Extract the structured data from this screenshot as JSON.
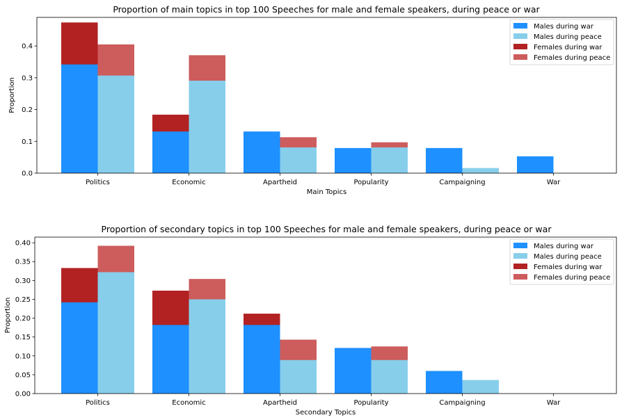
{
  "colors": {
    "males_war": "#1e90ff",
    "males_peace": "#87ceeb",
    "females_war": "#b22222",
    "females_peace": "#cd5c5c"
  },
  "chart_data": [
    {
      "type": "bar",
      "title": "Proportion of main topics in top 100 Speeches for male and female speakers, during peace or war",
      "xlabel": "Main Topics",
      "ylabel": "Proportion",
      "ylim": [
        0,
        0.49
      ],
      "yticks": [
        0.0,
        0.1,
        0.2,
        0.3,
        0.4
      ],
      "ytick_labels": [
        "0.0",
        "0.1",
        "0.2",
        "0.3",
        "0.4"
      ],
      "categories": [
        "Politics",
        "Economic",
        "Apartheid",
        "Popularity",
        "Campaigning",
        "War"
      ],
      "legend_position": "top-right",
      "grid": false,
      "series": [
        {
          "name": "Males during war",
          "values": [
            0.342,
            0.131,
            0.131,
            0.079,
            0.079,
            0.053
          ]
        },
        {
          "name": "Males during peace",
          "values": [
            0.307,
            0.291,
            0.081,
            0.081,
            0.016,
            0.0
          ]
        },
        {
          "name": "Females during war",
          "values": [
            0.474,
            0.184,
            0.0,
            0.0,
            0.0,
            0.0
          ]
        },
        {
          "name": "Females during peace",
          "values": [
            0.405,
            0.371,
            0.113,
            0.097,
            0.0,
            0.0
          ]
        }
      ]
    },
    {
      "type": "bar",
      "title": "Proportion of secondary topics in top 100 Speeches for male and female speakers, during peace or war",
      "xlabel": "Secondary Topics",
      "ylabel": "Proportion",
      "ylim": [
        0,
        0.415
      ],
      "yticks": [
        0.0,
        0.05,
        0.1,
        0.15,
        0.2,
        0.25,
        0.3,
        0.35,
        0.4
      ],
      "ytick_labels": [
        "0.00",
        "0.05",
        "0.10",
        "0.15",
        "0.20",
        "0.25",
        "0.30",
        "0.35",
        "0.40"
      ],
      "categories": [
        "Politics",
        "Economic",
        "Apartheid",
        "Popularity",
        "Campaigning",
        "War"
      ],
      "legend_position": "top-right",
      "grid": false,
      "series": [
        {
          "name": "Males during war",
          "values": [
            0.242,
            0.182,
            0.182,
            0.121,
            0.06,
            0.0
          ]
        },
        {
          "name": "Males during peace",
          "values": [
            0.322,
            0.25,
            0.089,
            0.089,
            0.036,
            0.0
          ]
        },
        {
          "name": "Females during war",
          "values": [
            0.333,
            0.273,
            0.212,
            0.0,
            0.0,
            0.0
          ]
        },
        {
          "name": "Females during peace",
          "values": [
            0.392,
            0.304,
            0.143,
            0.125,
            0.0,
            0.0
          ]
        }
      ]
    }
  ]
}
